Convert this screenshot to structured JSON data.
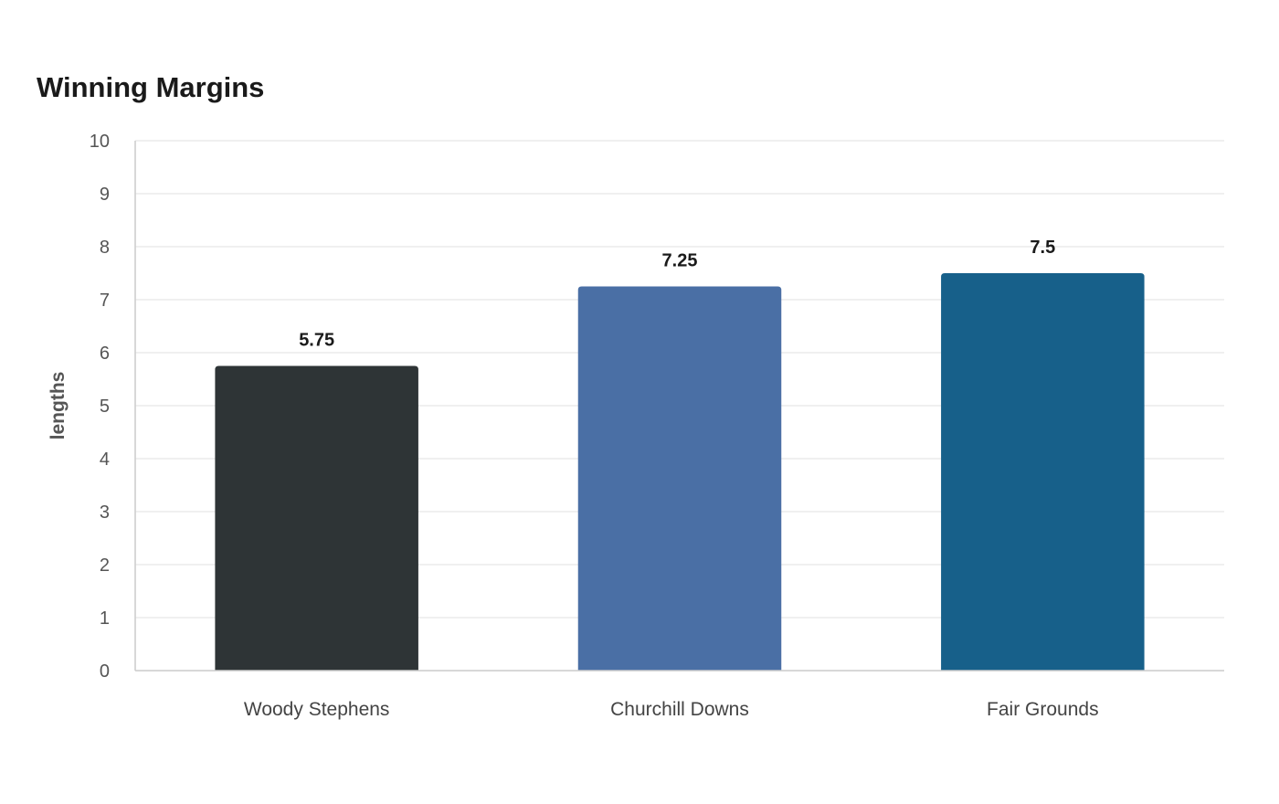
{
  "chart_data": {
    "type": "bar",
    "title": "Winning Margins",
    "xlabel": "",
    "ylabel": "lengths",
    "ylim": [
      0,
      10
    ],
    "yticks": [
      0,
      1,
      2,
      3,
      4,
      5,
      6,
      7,
      8,
      9,
      10
    ],
    "grid": true,
    "categories": [
      "Woody Stephens",
      "Churchill Downs",
      "Fair Grounds"
    ],
    "values": [
      5.75,
      7.25,
      7.5
    ],
    "data_labels": [
      "5.75",
      "7.25",
      "7.5"
    ],
    "colors": [
      "#2e3436",
      "#4a6fa5",
      "#17608a"
    ]
  }
}
